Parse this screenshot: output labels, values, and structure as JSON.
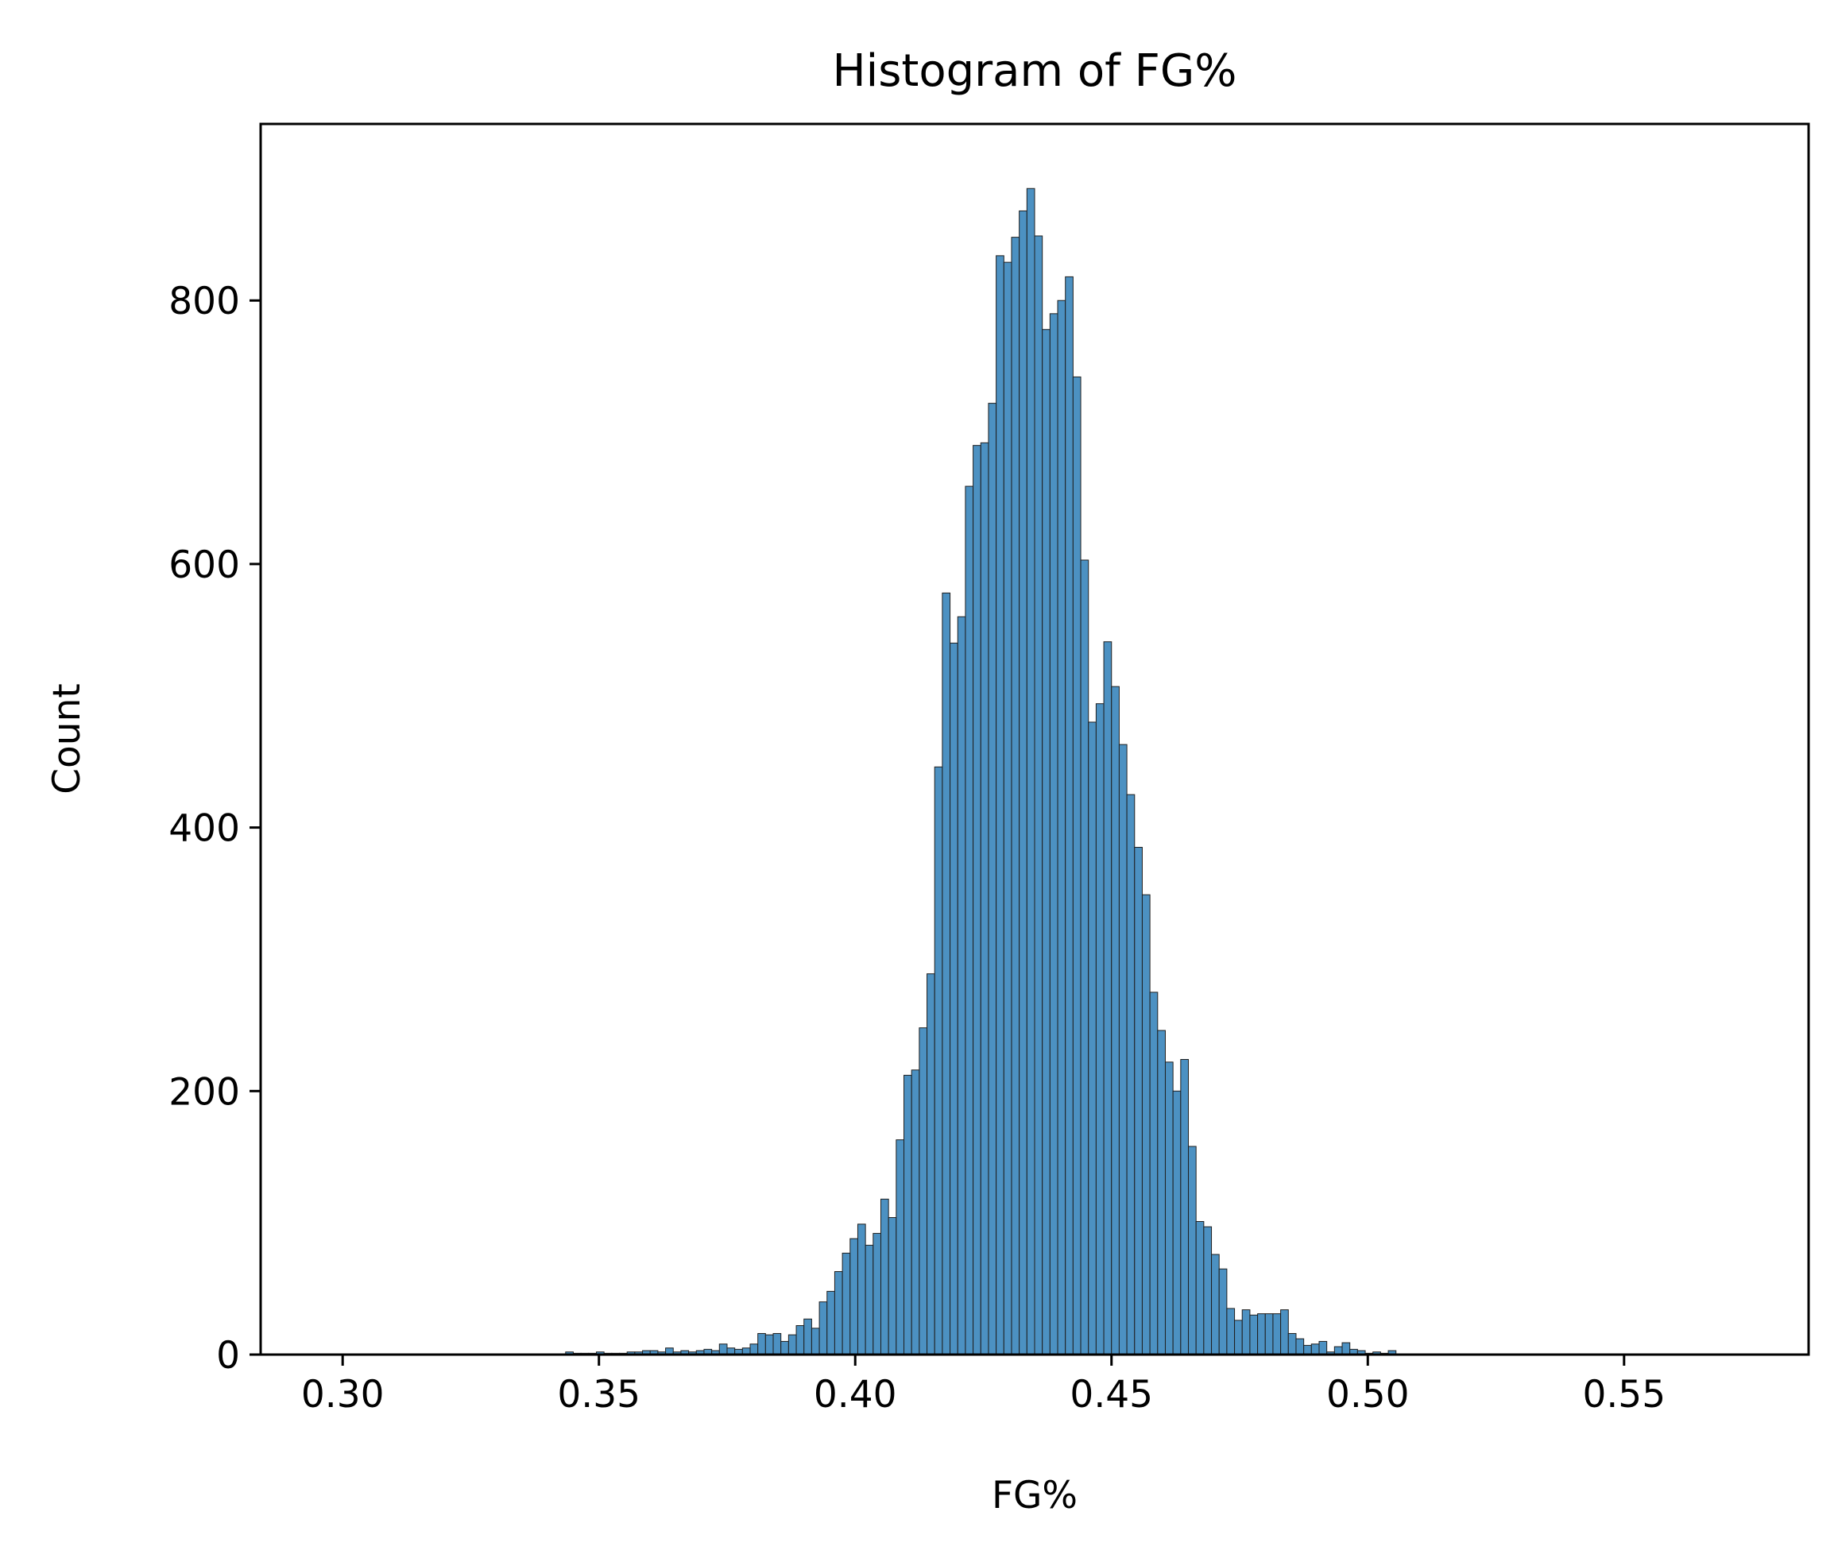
{
  "chart_data": {
    "type": "bar",
    "subtype": "histogram",
    "title": "Histogram of FG%",
    "xlabel": "FG%",
    "ylabel": "Count",
    "xlim": [
      0.284,
      0.586
    ],
    "ylim": [
      0,
      934
    ],
    "x_ticks": [
      0.3,
      0.35,
      0.4,
      0.45,
      0.5,
      0.55
    ],
    "x_tick_labels": [
      "0.30",
      "0.35",
      "0.40",
      "0.45",
      "0.50",
      "0.55"
    ],
    "y_ticks": [
      0,
      200,
      400,
      600,
      800
    ],
    "y_tick_labels": [
      "0",
      "200",
      "400",
      "600",
      "800"
    ],
    "grid": false,
    "legend": "none",
    "bar_color": "#4c91c2",
    "edge_color": "#1f1f1f",
    "bin_start": 0.2985,
    "bin_width": 0.0015,
    "counts": [
      0,
      0,
      0,
      0,
      0,
      0,
      0,
      0,
      0,
      0,
      0,
      0,
      0,
      0,
      0,
      0,
      0,
      0,
      0,
      0,
      0,
      0,
      0,
      0,
      0,
      0,
      0,
      0,
      0,
      0,
      2,
      1,
      1,
      1,
      2,
      1,
      1,
      1,
      2,
      2,
      3,
      3,
      2,
      5,
      2,
      3,
      2,
      3,
      4,
      3,
      8,
      5,
      4,
      5,
      8,
      16,
      15,
      16,
      10,
      15,
      22,
      27,
      20,
      40,
      48,
      63,
      77,
      88,
      99,
      83,
      92,
      118,
      104,
      163,
      212,
      216,
      248,
      289,
      446,
      578,
      540,
      560,
      659,
      690,
      692,
      722,
      834,
      829,
      848,
      868,
      885,
      849,
      778,
      790,
      800,
      818,
      742,
      603,
      480,
      494,
      541,
      507,
      463,
      425,
      385,
      349,
      275,
      246,
      222,
      200,
      224,
      158,
      101,
      97,
      76,
      65,
      35,
      26,
      34,
      30,
      31,
      31,
      31,
      34,
      16,
      12,
      7,
      8,
      10,
      2,
      6,
      9,
      4,
      3,
      1,
      2,
      1,
      3,
      0,
      0,
      0,
      0,
      0,
      0,
      0,
      0,
      0,
      0,
      0,
      0,
      0,
      0,
      0,
      0,
      0,
      0,
      0,
      0,
      0,
      0,
      0,
      0,
      0,
      0,
      0,
      0,
      0,
      0,
      0,
      0,
      0,
      0,
      0,
      0,
      0,
      0,
      0,
      0,
      0,
      0,
      0,
      0,
      0,
      0,
      0,
      0,
      0,
      0,
      0,
      0,
      0,
      0,
      0,
      0,
      0,
      0,
      0,
      0,
      0,
      0,
      0,
      0,
      0,
      0,
      0,
      0,
      0,
      0,
      0,
      0,
      0,
      0,
      0,
      0,
      0,
      0,
      0,
      0,
      0,
      0,
      0,
      0,
      0,
      0,
      0,
      0,
      0,
      0,
      0,
      0,
      0,
      0,
      0,
      0,
      0,
      0,
      0,
      0,
      0,
      0,
      0,
      0,
      0,
      0,
      0,
      0,
      0,
      0,
      0,
      0,
      0,
      0,
      0,
      0,
      0,
      0,
      0,
      0,
      0,
      0,
      0,
      0,
      0,
      0,
      0,
      0,
      0,
      0,
      0,
      0,
      0,
      0,
      0,
      0,
      0,
      0,
      0,
      0,
      0,
      0,
      0,
      0,
      0,
      0,
      0,
      0,
      0,
      0,
      0,
      0,
      0,
      0,
      0,
      0,
      0,
      0,
      0,
      0,
      0,
      0,
      0,
      0,
      0,
      0,
      0,
      0,
      0,
      0,
      0,
      0,
      0,
      0,
      0,
      0,
      0,
      0,
      0,
      0,
      0,
      0,
      0,
      0,
      0,
      0,
      0,
      0,
      0,
      0,
      0,
      0,
      0,
      0,
      0,
      0,
      0,
      0,
      0,
      0,
      0,
      0,
      0,
      0,
      0,
      0,
      0,
      0,
      0,
      0,
      0,
      0,
      0,
      0,
      0,
      0,
      0,
      0,
      0,
      0,
      0,
      0,
      0,
      0,
      0,
      0,
      0,
      0,
      0,
      0,
      0,
      0,
      0,
      0,
      0,
      0,
      0,
      0,
      0,
      0,
      0,
      0,
      0,
      0,
      0,
      0,
      0,
      0,
      0,
      0,
      0,
      0,
      0,
      0,
      0,
      0,
      0,
      0,
      0,
      0,
      0,
      0,
      0,
      0,
      0,
      0,
      0,
      0,
      0,
      0,
      0,
      0,
      0,
      0,
      0,
      0,
      0,
      0,
      0,
      0,
      0,
      0,
      0,
      0,
      0,
      0,
      0,
      0,
      0,
      0,
      0,
      0,
      0,
      0,
      0,
      0,
      0,
      0,
      0,
      0,
      0,
      0,
      0,
      0,
      0,
      0,
      0,
      0,
      0,
      0,
      0,
      0,
      0,
      0,
      0,
      0,
      0,
      0,
      0,
      0,
      0,
      0,
      0,
      0,
      0,
      0,
      0,
      0,
      0,
      0,
      0,
      0,
      0,
      0,
      0,
      0,
      0,
      0,
      0,
      0,
      0,
      0,
      0,
      0,
      0,
      0,
      0,
      0,
      0,
      0,
      0,
      0,
      0,
      0,
      0,
      0,
      0,
      0,
      0,
      0,
      0,
      0,
      0,
      0,
      0,
      0,
      0,
      0,
      0,
      0,
      0,
      0
    ]
  }
}
